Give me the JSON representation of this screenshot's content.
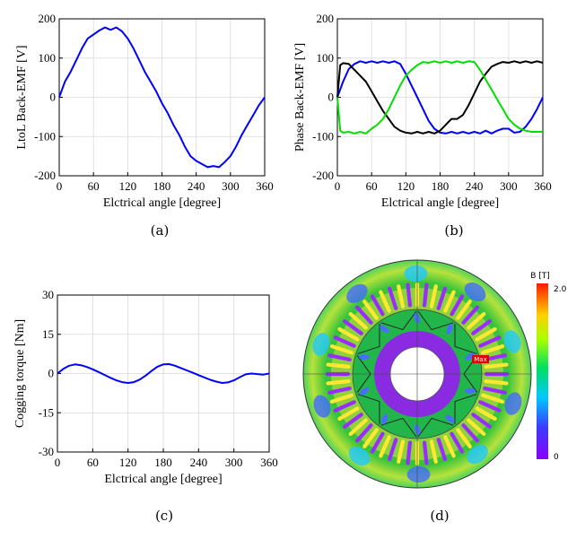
{
  "panels": {
    "a": {
      "label": "(a)"
    },
    "b": {
      "label": "(b)"
    },
    "c": {
      "label": "(c)"
    },
    "d": {
      "label": "(d)"
    }
  },
  "colorbar": {
    "title": "B [T]",
    "max_label": "2.0",
    "min_label": "0"
  },
  "flux_map": {
    "max_marker": "Max"
  },
  "chart_data": [
    {
      "id": "a",
      "type": "line",
      "xlabel": "Elctrical angle [degree]",
      "ylabel": "LtoL Back-EMF [V]",
      "xlim": [
        0,
        360
      ],
      "ylim": [
        -200,
        200
      ],
      "xticks": [
        0,
        60,
        120,
        180,
        240,
        300,
        360
      ],
      "yticks": [
        -200,
        -100,
        0,
        100,
        200
      ],
      "grid": true,
      "series": [
        {
          "color": "#0000ff",
          "x": [
            0,
            10,
            20,
            30,
            40,
            50,
            60,
            70,
            80,
            90,
            100,
            110,
            120,
            130,
            140,
            150,
            160,
            170,
            180,
            190,
            200,
            210,
            220,
            230,
            240,
            250,
            260,
            270,
            280,
            290,
            300,
            310,
            320,
            330,
            340,
            350,
            360
          ],
          "y": [
            0,
            40,
            65,
            95,
            125,
            150,
            160,
            170,
            178,
            172,
            178,
            168,
            150,
            125,
            95,
            65,
            40,
            15,
            -15,
            -40,
            -70,
            -95,
            -125,
            -150,
            -162,
            -170,
            -178,
            -175,
            -178,
            -165,
            -150,
            -125,
            -95,
            -70,
            -45,
            -20,
            0
          ]
        }
      ]
    },
    {
      "id": "b",
      "type": "line",
      "xlabel": "Elctrical angle [degree]",
      "ylabel": "Phase Back-EMF [V]",
      "xlim": [
        0,
        360
      ],
      "ylim": [
        -200,
        200
      ],
      "xticks": [
        0,
        60,
        120,
        180,
        240,
        300,
        360
      ],
      "yticks": [
        -200,
        -100,
        0,
        100,
        200
      ],
      "grid": true,
      "series": [
        {
          "color": "#0000ff",
          "x": [
            0,
            10,
            20,
            30,
            40,
            50,
            60,
            70,
            80,
            90,
            100,
            110,
            120,
            130,
            140,
            150,
            160,
            170,
            180,
            190,
            200,
            210,
            220,
            230,
            240,
            250,
            260,
            270,
            280,
            290,
            300,
            310,
            320,
            330,
            340,
            350,
            360
          ],
          "y": [
            0,
            40,
            72,
            85,
            92,
            88,
            92,
            88,
            92,
            88,
            92,
            85,
            60,
            30,
            0,
            -30,
            -60,
            -80,
            -90,
            -92,
            -88,
            -92,
            -88,
            -92,
            -88,
            -92,
            -85,
            -92,
            -85,
            -80,
            -80,
            -90,
            -88,
            -75,
            -55,
            -30,
            0
          ]
        },
        {
          "color": "#000000",
          "x": [
            0,
            5,
            10,
            20,
            30,
            40,
            50,
            60,
            70,
            80,
            90,
            100,
            110,
            120,
            130,
            140,
            150,
            160,
            170,
            180,
            190,
            200,
            210,
            220,
            230,
            240,
            250,
            260,
            270,
            280,
            290,
            300,
            310,
            320,
            330,
            340,
            350,
            360
          ],
          "y": [
            0,
            82,
            87,
            85,
            70,
            55,
            40,
            15,
            -10,
            -35,
            -55,
            -75,
            -85,
            -90,
            -92,
            -88,
            -92,
            -88,
            -92,
            -85,
            -70,
            -55,
            -55,
            -45,
            -20,
            10,
            40,
            60,
            78,
            85,
            90,
            88,
            92,
            88,
            92,
            88,
            92,
            88
          ]
        },
        {
          "color": "#00e000",
          "x": [
            0,
            5,
            10,
            20,
            30,
            40,
            50,
            60,
            70,
            80,
            90,
            100,
            110,
            120,
            130,
            140,
            150,
            160,
            170,
            180,
            190,
            200,
            210,
            220,
            230,
            240,
            250,
            260,
            270,
            280,
            290,
            300,
            310,
            320,
            330,
            340,
            350,
            360
          ],
          "y": [
            0,
            -85,
            -90,
            -88,
            -92,
            -88,
            -92,
            -80,
            -70,
            -55,
            -30,
            0,
            30,
            55,
            70,
            82,
            90,
            88,
            92,
            88,
            92,
            88,
            92,
            88,
            92,
            90,
            70,
            45,
            20,
            -5,
            -30,
            -55,
            -70,
            -80,
            -85,
            -88,
            -88,
            -88
          ]
        }
      ]
    },
    {
      "id": "c",
      "type": "line",
      "xlabel": "Elctrical angle [degree]",
      "ylabel": "Cogging torque [Nm]",
      "xlim": [
        0,
        360
      ],
      "ylim": [
        -30,
        30
      ],
      "xticks": [
        0,
        60,
        120,
        180,
        240,
        300,
        360
      ],
      "yticks": [
        -30,
        -15,
        0,
        15,
        30
      ],
      "grid": true,
      "series": [
        {
          "color": "#0000ff",
          "x": [
            0,
            10,
            20,
            30,
            40,
            50,
            60,
            70,
            80,
            90,
            100,
            110,
            120,
            130,
            140,
            150,
            160,
            170,
            180,
            190,
            200,
            210,
            220,
            230,
            240,
            250,
            260,
            270,
            280,
            290,
            300,
            310,
            320,
            330,
            340,
            350,
            360
          ],
          "y": [
            0,
            1.8,
            3.0,
            3.5,
            3.2,
            2.5,
            1.6,
            0.6,
            -0.5,
            -1.6,
            -2.6,
            -3.3,
            -3.6,
            -3.3,
            -2.3,
            -0.8,
            1.0,
            2.6,
            3.5,
            3.6,
            3.0,
            2.1,
            1.2,
            0.3,
            -0.6,
            -1.5,
            -2.4,
            -3.1,
            -3.6,
            -3.4,
            -2.6,
            -1.4,
            -0.3,
            0,
            -0.2,
            -0.4,
            0
          ]
        }
      ]
    }
  ]
}
